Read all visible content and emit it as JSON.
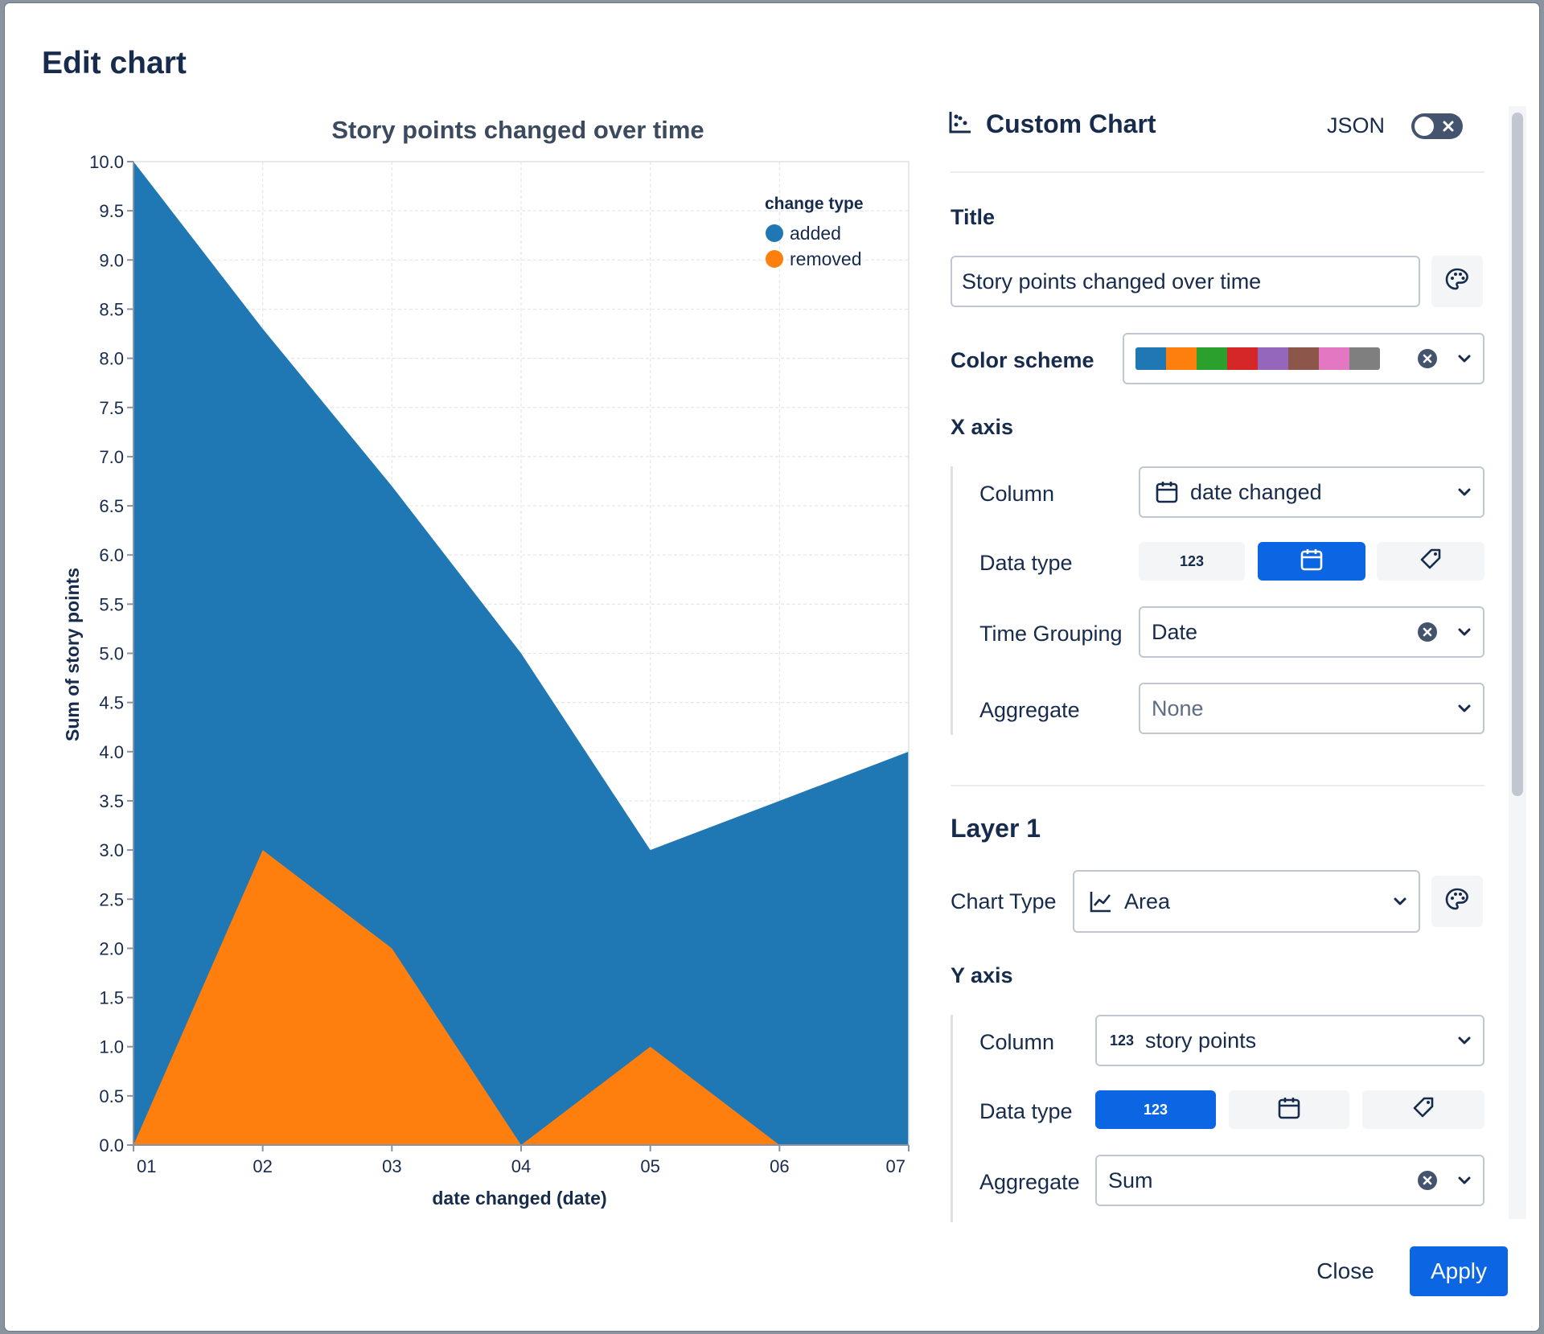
{
  "dialog": {
    "title": "Edit chart",
    "close_label": "Close",
    "apply_label": "Apply"
  },
  "panel": {
    "header_title": "Custom Chart",
    "header_icon": "chart-icon",
    "json_label": "JSON",
    "json_toggle_on": false,
    "title_section_label": "Title",
    "title_value": "Story points changed over time",
    "color_scheme_label": "Color scheme",
    "color_scheme_swatches": [
      "#1f77b4",
      "#ff7f0e",
      "#2ca02c",
      "#d62728",
      "#9467bd",
      "#8c564b",
      "#e377c2",
      "#7f7f7f"
    ],
    "x_axis": {
      "label": "X axis",
      "column_label": "Column",
      "column_value": "date changed",
      "data_type_label": "Data type",
      "data_type_options": [
        "123",
        "calendar-icon",
        "tag-icon"
      ],
      "data_type_selected": 1,
      "time_grouping_label": "Time Grouping",
      "time_grouping_value": "Date",
      "aggregate_label": "Aggregate",
      "aggregate_value": "None"
    },
    "layer": {
      "label": "Layer 1",
      "chart_type_label": "Chart Type",
      "chart_type_value": "Area"
    },
    "y_axis": {
      "label": "Y axis",
      "column_label": "Column",
      "column_prefix": "123",
      "column_value": "story points",
      "data_type_label": "Data type",
      "data_type_options": [
        "123",
        "calendar-icon",
        "tag-icon"
      ],
      "data_type_selected": 0,
      "aggregate_label": "Aggregate",
      "aggregate_value": "Sum"
    }
  },
  "chart_data": {
    "type": "area",
    "title": "Story points changed over time",
    "xlabel": "date changed (date)",
    "ylabel": "Sum of story points",
    "categories": [
      "01",
      "02",
      "03",
      "04",
      "05",
      "06",
      "07"
    ],
    "ylim": [
      0,
      10
    ],
    "yticks": [
      "0.0",
      "0.5",
      "1.0",
      "1.5",
      "2.0",
      "2.5",
      "3.0",
      "3.5",
      "4.0",
      "4.5",
      "5.0",
      "5.5",
      "6.0",
      "6.5",
      "7.0",
      "7.5",
      "8.0",
      "8.5",
      "9.0",
      "9.5",
      "10.0"
    ],
    "grid": true,
    "legend_title": "change type",
    "legend_position": "top-right",
    "series": [
      {
        "name": "added",
        "color": "#1f77b4",
        "values": [
          10,
          8.3,
          6.7,
          5,
          3,
          3.5,
          4
        ]
      },
      {
        "name": "removed",
        "color": "#ff7f0e",
        "values": [
          0,
          3,
          2,
          0,
          1,
          0,
          null
        ]
      }
    ]
  }
}
